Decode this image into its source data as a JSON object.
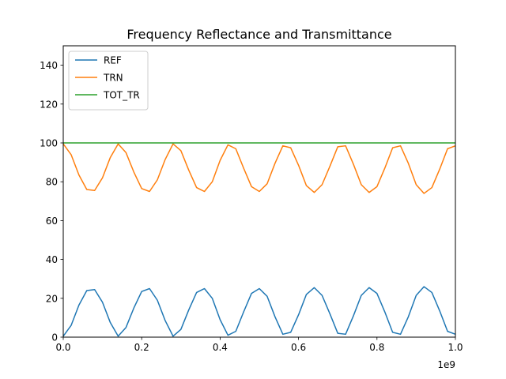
{
  "chart_data": {
    "type": "line",
    "title": "Frequency Reflectance and Transmittance",
    "xlabel": "",
    "ylabel": "",
    "x_offset_label": "1e9",
    "xlim": [
      0,
      1.0
    ],
    "ylim": [
      0,
      150
    ],
    "xticks": [
      0.0,
      0.2,
      0.4,
      0.6,
      0.8,
      1.0
    ],
    "xtick_labels": [
      "0.0",
      "0.2",
      "0.4",
      "0.6",
      "0.8",
      "1.0"
    ],
    "yticks": [
      0,
      20,
      40,
      60,
      80,
      100,
      120,
      140
    ],
    "ytick_labels": [
      "0",
      "20",
      "40",
      "60",
      "80",
      "100",
      "120",
      "140"
    ],
    "grid": false,
    "legend_position": "upper-left",
    "x": [
      0.0,
      0.02,
      0.04,
      0.06,
      0.08,
      0.1,
      0.12,
      0.14,
      0.16,
      0.18,
      0.2,
      0.22,
      0.24,
      0.26,
      0.28,
      0.3,
      0.32,
      0.34,
      0.36,
      0.38,
      0.4,
      0.42,
      0.44,
      0.46,
      0.48,
      0.5,
      0.52,
      0.54,
      0.56,
      0.58,
      0.6,
      0.62,
      0.64,
      0.66,
      0.68,
      0.7,
      0.72,
      0.74,
      0.76,
      0.78,
      0.8,
      0.82,
      0.84,
      0.86,
      0.88,
      0.9,
      0.92,
      0.94,
      0.96,
      0.98,
      1.0
    ],
    "series": [
      {
        "name": "REF",
        "color": "#1f77b4",
        "values": [
          0.5,
          6,
          16.5,
          24,
          24.5,
          18,
          7.5,
          0.5,
          5,
          15,
          23.5,
          25,
          19,
          8.5,
          0.5,
          4,
          14,
          23,
          25,
          20,
          9,
          1,
          3,
          13,
          22.5,
          25,
          21,
          10.5,
          1.5,
          2.5,
          11.5,
          22,
          25.5,
          21.5,
          12,
          2,
          1.5,
          11,
          21.5,
          25.5,
          22.5,
          13,
          2.5,
          1.5,
          10.5,
          21.5,
          26,
          23,
          13.5,
          3,
          1.5
        ]
      },
      {
        "name": "TRN",
        "color": "#ff7f0e",
        "values": [
          99.5,
          94,
          83.5,
          76,
          75.5,
          82,
          92.5,
          99.5,
          95,
          85,
          76.5,
          75,
          81,
          91.5,
          99.5,
          96,
          86,
          77,
          75,
          80,
          91,
          99,
          97,
          87,
          77.5,
          75,
          79,
          89.5,
          98.5,
          97.5,
          88.5,
          78,
          74.5,
          78.5,
          88,
          98,
          98.5,
          89,
          78.5,
          74.5,
          77.5,
          87,
          97.5,
          98.5,
          89.5,
          78.5,
          74,
          77,
          86.5,
          97,
          98.5
        ]
      },
      {
        "name": "TOT_TR",
        "color": "#2ca02c",
        "values": [
          100,
          100,
          100,
          100,
          100,
          100,
          100,
          100,
          100,
          100,
          100,
          100,
          100,
          100,
          100,
          100,
          100,
          100,
          100,
          100,
          100,
          100,
          100,
          100,
          100,
          100,
          100,
          100,
          100,
          100,
          100,
          100,
          100,
          100,
          100,
          100,
          100,
          100,
          100,
          100,
          100,
          100,
          100,
          100,
          100,
          100,
          100,
          100,
          100,
          100,
          100
        ]
      }
    ]
  }
}
